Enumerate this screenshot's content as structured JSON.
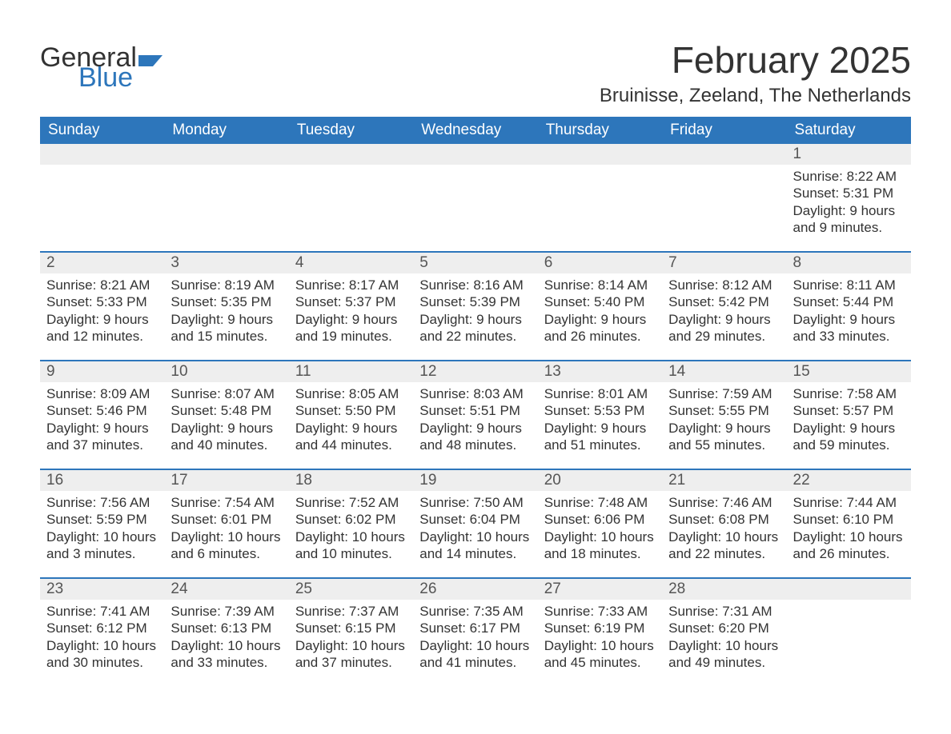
{
  "brand": {
    "word1": "General",
    "word2": "Blue",
    "word1_color": "#333333",
    "word2_color": "#2d76bb"
  },
  "title": "February 2025",
  "location": "Bruinisse, Zeeland, The Netherlands",
  "header_bg": "#2d76bb",
  "header_fg": "#ffffff",
  "daynum_bg": "#eeeeee",
  "rule_color": "#2d76bb",
  "text_color": "#333333",
  "page_bg": "#ffffff",
  "columns": [
    "Sunday",
    "Monday",
    "Tuesday",
    "Wednesday",
    "Thursday",
    "Friday",
    "Saturday"
  ],
  "weeks": [
    [
      null,
      null,
      null,
      null,
      null,
      null,
      {
        "n": "1",
        "sunrise": "Sunrise: 8:22 AM",
        "sunset": "Sunset: 5:31 PM",
        "dl1": "Daylight: 9 hours",
        "dl2": "and 9 minutes."
      }
    ],
    [
      {
        "n": "2",
        "sunrise": "Sunrise: 8:21 AM",
        "sunset": "Sunset: 5:33 PM",
        "dl1": "Daylight: 9 hours",
        "dl2": "and 12 minutes."
      },
      {
        "n": "3",
        "sunrise": "Sunrise: 8:19 AM",
        "sunset": "Sunset: 5:35 PM",
        "dl1": "Daylight: 9 hours",
        "dl2": "and 15 minutes."
      },
      {
        "n": "4",
        "sunrise": "Sunrise: 8:17 AM",
        "sunset": "Sunset: 5:37 PM",
        "dl1": "Daylight: 9 hours",
        "dl2": "and 19 minutes."
      },
      {
        "n": "5",
        "sunrise": "Sunrise: 8:16 AM",
        "sunset": "Sunset: 5:39 PM",
        "dl1": "Daylight: 9 hours",
        "dl2": "and 22 minutes."
      },
      {
        "n": "6",
        "sunrise": "Sunrise: 8:14 AM",
        "sunset": "Sunset: 5:40 PM",
        "dl1": "Daylight: 9 hours",
        "dl2": "and 26 minutes."
      },
      {
        "n": "7",
        "sunrise": "Sunrise: 8:12 AM",
        "sunset": "Sunset: 5:42 PM",
        "dl1": "Daylight: 9 hours",
        "dl2": "and 29 minutes."
      },
      {
        "n": "8",
        "sunrise": "Sunrise: 8:11 AM",
        "sunset": "Sunset: 5:44 PM",
        "dl1": "Daylight: 9 hours",
        "dl2": "and 33 minutes."
      }
    ],
    [
      {
        "n": "9",
        "sunrise": "Sunrise: 8:09 AM",
        "sunset": "Sunset: 5:46 PM",
        "dl1": "Daylight: 9 hours",
        "dl2": "and 37 minutes."
      },
      {
        "n": "10",
        "sunrise": "Sunrise: 8:07 AM",
        "sunset": "Sunset: 5:48 PM",
        "dl1": "Daylight: 9 hours",
        "dl2": "and 40 minutes."
      },
      {
        "n": "11",
        "sunrise": "Sunrise: 8:05 AM",
        "sunset": "Sunset: 5:50 PM",
        "dl1": "Daylight: 9 hours",
        "dl2": "and 44 minutes."
      },
      {
        "n": "12",
        "sunrise": "Sunrise: 8:03 AM",
        "sunset": "Sunset: 5:51 PM",
        "dl1": "Daylight: 9 hours",
        "dl2": "and 48 minutes."
      },
      {
        "n": "13",
        "sunrise": "Sunrise: 8:01 AM",
        "sunset": "Sunset: 5:53 PM",
        "dl1": "Daylight: 9 hours",
        "dl2": "and 51 minutes."
      },
      {
        "n": "14",
        "sunrise": "Sunrise: 7:59 AM",
        "sunset": "Sunset: 5:55 PM",
        "dl1": "Daylight: 9 hours",
        "dl2": "and 55 minutes."
      },
      {
        "n": "15",
        "sunrise": "Sunrise: 7:58 AM",
        "sunset": "Sunset: 5:57 PM",
        "dl1": "Daylight: 9 hours",
        "dl2": "and 59 minutes."
      }
    ],
    [
      {
        "n": "16",
        "sunrise": "Sunrise: 7:56 AM",
        "sunset": "Sunset: 5:59 PM",
        "dl1": "Daylight: 10 hours",
        "dl2": "and 3 minutes."
      },
      {
        "n": "17",
        "sunrise": "Sunrise: 7:54 AM",
        "sunset": "Sunset: 6:01 PM",
        "dl1": "Daylight: 10 hours",
        "dl2": "and 6 minutes."
      },
      {
        "n": "18",
        "sunrise": "Sunrise: 7:52 AM",
        "sunset": "Sunset: 6:02 PM",
        "dl1": "Daylight: 10 hours",
        "dl2": "and 10 minutes."
      },
      {
        "n": "19",
        "sunrise": "Sunrise: 7:50 AM",
        "sunset": "Sunset: 6:04 PM",
        "dl1": "Daylight: 10 hours",
        "dl2": "and 14 minutes."
      },
      {
        "n": "20",
        "sunrise": "Sunrise: 7:48 AM",
        "sunset": "Sunset: 6:06 PM",
        "dl1": "Daylight: 10 hours",
        "dl2": "and 18 minutes."
      },
      {
        "n": "21",
        "sunrise": "Sunrise: 7:46 AM",
        "sunset": "Sunset: 6:08 PM",
        "dl1": "Daylight: 10 hours",
        "dl2": "and 22 minutes."
      },
      {
        "n": "22",
        "sunrise": "Sunrise: 7:44 AM",
        "sunset": "Sunset: 6:10 PM",
        "dl1": "Daylight: 10 hours",
        "dl2": "and 26 minutes."
      }
    ],
    [
      {
        "n": "23",
        "sunrise": "Sunrise: 7:41 AM",
        "sunset": "Sunset: 6:12 PM",
        "dl1": "Daylight: 10 hours",
        "dl2": "and 30 minutes."
      },
      {
        "n": "24",
        "sunrise": "Sunrise: 7:39 AM",
        "sunset": "Sunset: 6:13 PM",
        "dl1": "Daylight: 10 hours",
        "dl2": "and 33 minutes."
      },
      {
        "n": "25",
        "sunrise": "Sunrise: 7:37 AM",
        "sunset": "Sunset: 6:15 PM",
        "dl1": "Daylight: 10 hours",
        "dl2": "and 37 minutes."
      },
      {
        "n": "26",
        "sunrise": "Sunrise: 7:35 AM",
        "sunset": "Sunset: 6:17 PM",
        "dl1": "Daylight: 10 hours",
        "dl2": "and 41 minutes."
      },
      {
        "n": "27",
        "sunrise": "Sunrise: 7:33 AM",
        "sunset": "Sunset: 6:19 PM",
        "dl1": "Daylight: 10 hours",
        "dl2": "and 45 minutes."
      },
      {
        "n": "28",
        "sunrise": "Sunrise: 7:31 AM",
        "sunset": "Sunset: 6:20 PM",
        "dl1": "Daylight: 10 hours",
        "dl2": "and 49 minutes."
      },
      null
    ]
  ]
}
